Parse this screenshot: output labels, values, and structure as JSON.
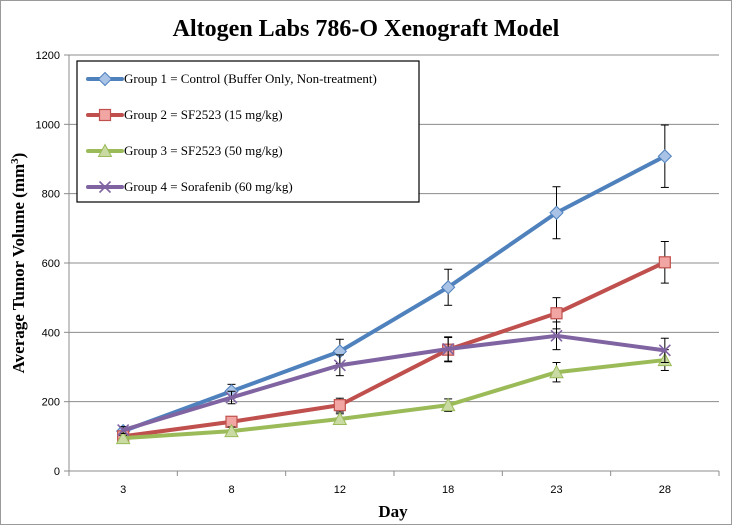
{
  "chart_data": {
    "type": "line",
    "title": "Altogen Labs 786-O Xenograft Model",
    "xlabel": "Day",
    "ylabel": "Average Tumor Volume (mm³)",
    "ylabel_main": "Average Tumor Volume (mm",
    "ylabel_sup": "3",
    "ylabel_close": ")",
    "categories": [
      "3",
      "8",
      "12",
      "18",
      "23",
      "28"
    ],
    "ylim": [
      0,
      1200
    ],
    "yticks": [
      0,
      200,
      400,
      600,
      800,
      1000,
      1200
    ],
    "grid": true,
    "legend_position": "top-left",
    "series": [
      {
        "name": "Group 1 = Control (Buffer Only, Non-treatment)",
        "color": "#4f81bd",
        "marker": "diamond",
        "values": [
          115,
          230,
          345,
          530,
          745,
          908
        ],
        "errors": [
          12,
          20,
          35,
          52,
          75,
          90
        ]
      },
      {
        "name": "Group 2 = SF2523 (15 mg/kg)",
        "color": "#c0504d",
        "marker": "square",
        "values": [
          100,
          142,
          190,
          350,
          455,
          602
        ],
        "errors": [
          10,
          15,
          20,
          35,
          45,
          60
        ]
      },
      {
        "name": "Group 3 = SF2523 (50 mg/kg)",
        "color": "#9bbb59",
        "marker": "triangle",
        "values": [
          95,
          115,
          150,
          190,
          285,
          320
        ],
        "errors": [
          8,
          12,
          15,
          18,
          28,
          30
        ]
      },
      {
        "name": "Group 4 = Sorafenib (60 mg/kg)",
        "color": "#8064a2",
        "marker": "x",
        "values": [
          118,
          212,
          305,
          352,
          390,
          348
        ],
        "errors": [
          10,
          18,
          30,
          35,
          40,
          35
        ]
      }
    ]
  }
}
